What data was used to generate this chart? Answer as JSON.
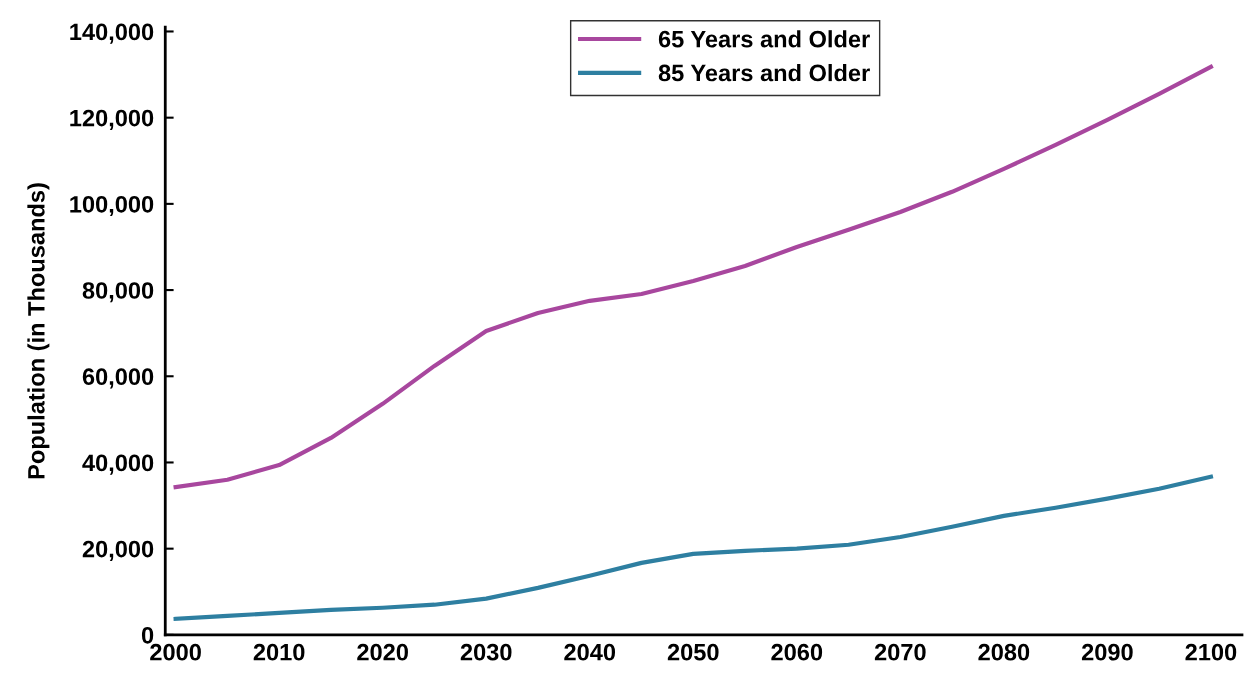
{
  "chart_data": {
    "type": "line",
    "ylabel": "Population (in Thousands)",
    "x": [
      2000,
      2005,
      2010,
      2015,
      2020,
      2025,
      2030,
      2035,
      2040,
      2045,
      2050,
      2055,
      2060,
      2065,
      2070,
      2075,
      2080,
      2085,
      2090,
      2095,
      2100
    ],
    "series": [
      {
        "name": "65 Years and Older",
        "color": "#a8479e",
        "values": [
          34300,
          36000,
          39400,
          45700,
          53600,
          62400,
          70500,
          74700,
          77500,
          79100,
          82100,
          85600,
          90000,
          94000,
          98100,
          102800,
          108100,
          113700,
          119500,
          125500,
          131800
        ]
      },
      {
        "name": "85 Years and Older",
        "color": "#2e7fa1",
        "values": [
          3700,
          4400,
          5100,
          5800,
          6300,
          7000,
          8400,
          10900,
          13700,
          16700,
          18800,
          19500,
          20000,
          20900,
          22700,
          25100,
          27600,
          29500,
          31600,
          33900,
          36700
        ]
      }
    ],
    "xlim": [
      1999,
      2103
    ],
    "xticks": [
      2000,
      2010,
      2020,
      2030,
      2040,
      2050,
      2060,
      2070,
      2080,
      2090,
      2100
    ],
    "ylim": [
      0,
      141000
    ],
    "yticks": [
      {
        "value": 0,
        "label": "0"
      },
      {
        "value": 20000,
        "label": "20,000"
      },
      {
        "value": 40000,
        "label": "40,000"
      },
      {
        "value": 60000,
        "label": "60,000"
      },
      {
        "value": 80000,
        "label": "80,000"
      },
      {
        "value": 100000,
        "label": "100,000"
      },
      {
        "value": 120000,
        "label": "120,000"
      },
      {
        "value": 140000,
        "label": "140,000"
      }
    ],
    "grid": false,
    "legend": "top",
    "marker": "none",
    "line_style": "solid"
  }
}
